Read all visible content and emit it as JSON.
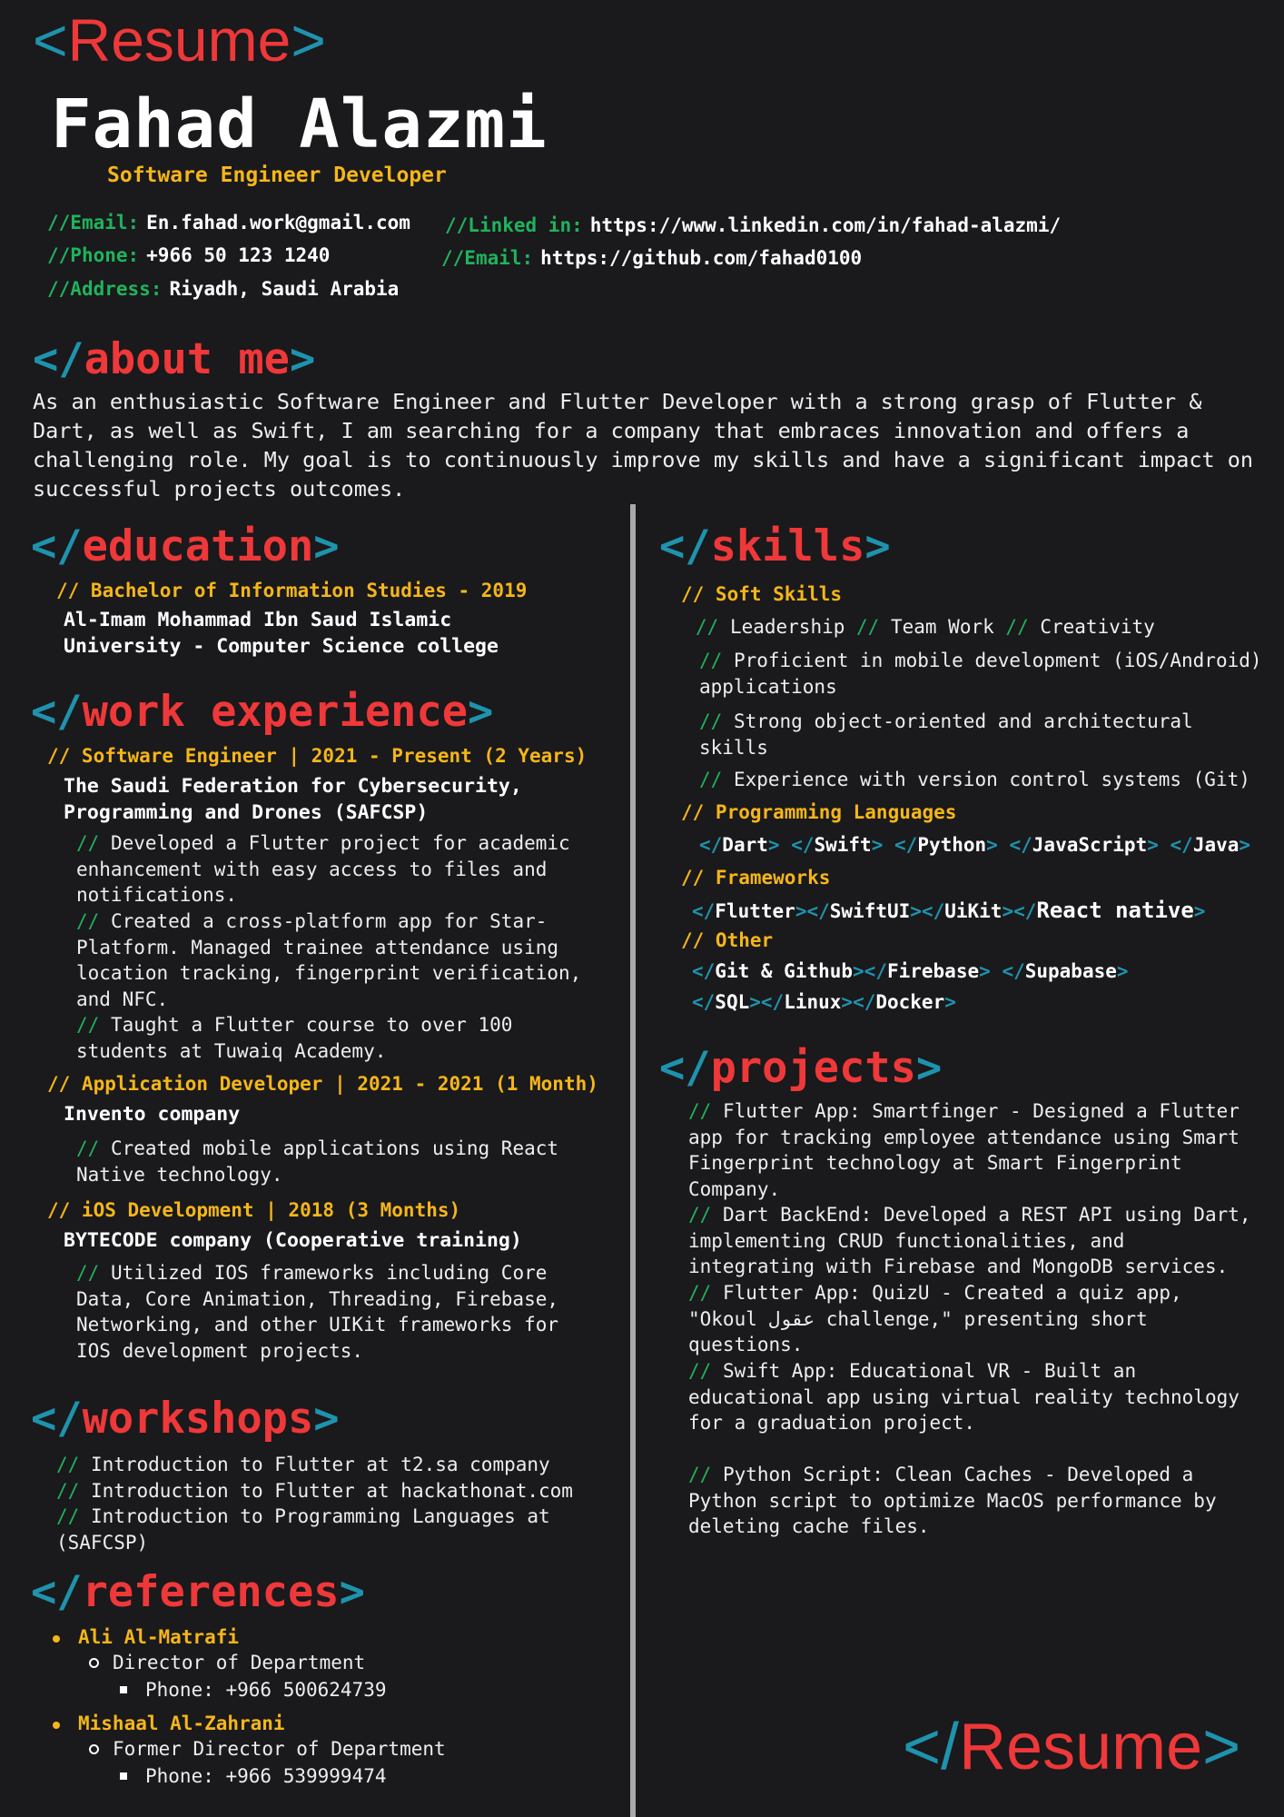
{
  "header": {
    "logo_open": "<",
    "logo_word": "Resume",
    "logo_close": ">",
    "name": "Fahad Alazmi",
    "role": "Software Engineer Developer"
  },
  "contacts": {
    "left": [
      {
        "label": "Email:",
        "value": "En.fahad.work@gmail.com"
      },
      {
        "label": "Phone:",
        "value": "+966 50 123 1240"
      },
      {
        "label": "Address:",
        "value": "Riyadh, Saudi Arabia"
      }
    ],
    "right": [
      {
        "label": "Linked in:",
        "value": "https://www.linkedin.com/in/fahad-alazmi/"
      },
      {
        "label": "Email:",
        "value": "https://github.com/fahad0100"
      }
    ],
    "prefix": "//"
  },
  "sections": {
    "tag_open": "</",
    "tag_close": ">",
    "about": "about me",
    "education": "education",
    "work": "work experience",
    "workshops": "workshops",
    "references": "references",
    "skills": "skills",
    "projects": "projects"
  },
  "about_text": "As an enthusiastic Software Engineer and Flutter Developer with a strong grasp of Flutter & Dart, as well as Swift, I am searching for a company that embraces innovation and offers a challenging role. My goal is to continuously improve my skills and have a significant impact on successful projects outcomes.",
  "education": {
    "degree": "// Bachelor of Information Studies - 2019",
    "school": "Al-Imam Mohammad Ibn Saud Islamic University - Computer Science college"
  },
  "work": [
    {
      "title": "// Software Engineer | 2021 - Present (2 Years)",
      "company": "The Saudi Federation for Cybersecurity, Programming and Drones (SAFCSP)",
      "points": [
        "Developed a Flutter project for academic enhancement with easy access to files and notifications.",
        "Created a cross-platform app for Star-Platform. Managed trainee attendance using location tracking, fingerprint verification, and NFC.",
        "Taught a Flutter course to over 100 students at Tuwaiq Academy."
      ]
    },
    {
      "title": "// Application Developer | 2021 - 2021 (1 Month)",
      "company": "Invento company",
      "points": [
        "Created mobile applications using React Native technology."
      ]
    },
    {
      "title": "// iOS Development | 2018 (3 Months)",
      "company": "BYTECODE company (Cooperative training)",
      "points": [
        "Utilized IOS frameworks including Core Data, Core Animation, Threading, Firebase, Networking, and other UIKit frameworks for IOS development projects."
      ]
    }
  ],
  "workshops": [
    "Introduction to Flutter at t2.sa company",
    "Introduction to Flutter at hackathonat.com",
    "Introduction to Programming Languages at (SAFCSP)"
  ],
  "references": [
    {
      "name": "Ali Al-Matrafi",
      "role": "Director of Department",
      "phone": "Phone: +966 500624739"
    },
    {
      "name": "Mishaal Al-Zahrani",
      "role": "Former Director of Department",
      "phone": "Phone: +966 539999474"
    }
  ],
  "skills": {
    "soft_title": "// Soft Skills",
    "soft_inline": [
      "Leadership",
      "Team Work",
      "Creativity"
    ],
    "soft_lines": [
      "Proficient in mobile development (iOS/Android) applications",
      "Strong object-oriented and architectural skills",
      "Experience with version control systems (Git)"
    ],
    "lang_title": "// Programming Languages",
    "languages": [
      "Dart",
      "Swift",
      "Python",
      "JavaScript",
      "Java"
    ],
    "fw_title": "// Frameworks",
    "frameworks": [
      "Flutter",
      "SwiftUI",
      "UiKit",
      "React native"
    ],
    "other_title": "// Other",
    "other_row1": [
      "Git & Github",
      "Firebase",
      "Supabase"
    ],
    "other_row2": [
      "SQL",
      "Linux",
      "Docker"
    ]
  },
  "projects": [
    "Flutter App: Smartfinger - Designed a Flutter app for tracking employee attendance using Smart Fingerprint technology at Smart Fingerprint Company.",
    "Dart BackEnd: Developed a REST API using Dart, implementing CRUD functionalities, and integrating with Firebase and MongoDB services.",
    "Flutter App: QuizU - Created a quiz app, \"Okoul عقول challenge,\" presenting short questions.",
    "Swift App: Educational VR - Built an educational app using virtual reality technology for a graduation project.",
    "Python Script: Clean Caches - Developed a Python script to optimize MacOS performance by deleting cache files."
  ],
  "footer": {
    "logo_open": "</",
    "logo_word": "Resume",
    "logo_close": ">"
  },
  "colors": {
    "background": "#1a191c",
    "red": "#ee3839",
    "cyan": "#1e93ad",
    "yellow": "#f5b619",
    "green": "#1fb35c",
    "divider": "#a9a9ab"
  }
}
